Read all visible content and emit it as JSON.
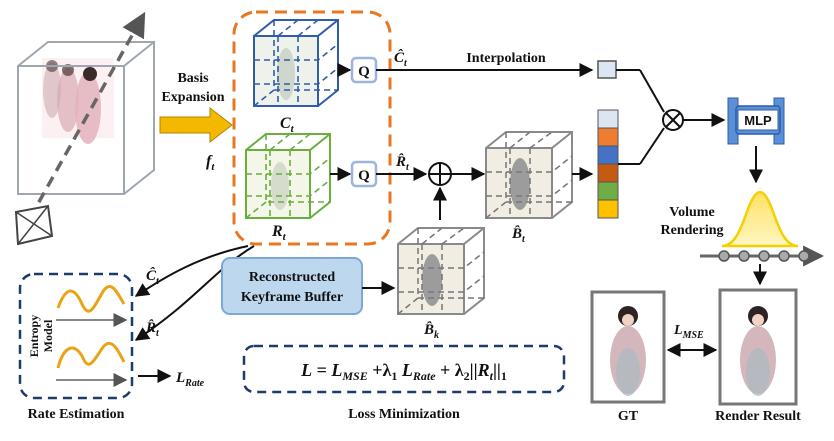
{
  "labels": {
    "basis_expansion_1": "Basis",
    "basis_expansion_2": "Expansion",
    "f_t": "f",
    "f_t_sub": "t",
    "C_t": "C",
    "C_t_sub": "t",
    "R_t": "R",
    "R_t_sub": "t",
    "Q": "Q",
    "C_hat": "Ĉ",
    "C_hat_sub": "t",
    "R_hat": "R̂",
    "R_hat_sub": "t",
    "interpolation": "Interpolation",
    "B_hat_t": "B̂",
    "B_hat_t_sub": "t",
    "B_hat_k": "B̂",
    "B_hat_k_sub": "k",
    "keyframe_buffer_1": "Reconstructed",
    "keyframe_buffer_2": "Keyframe Buffer",
    "mlp": "MLP",
    "volume_rendering_1": "Volume",
    "volume_rendering_2": "Rendering",
    "entropy_model_1": "Entropy",
    "entropy_model_2": "Model",
    "L_rate": "L",
    "L_rate_sub": "Rate",
    "L_mse": "L",
    "L_mse_sub": "MSE",
    "rate_estimation": "Rate Estimation",
    "loss_minimization": "Loss Minimization",
    "gt": "GT",
    "render_result": "Render Result",
    "loss_formula": {
      "L": "L",
      "eq": " = ",
      "Lmse": "L",
      "Lmse_sub": "MSE",
      "plus1": " +λ",
      "l1_sub": "1",
      "Lrate": " L",
      "Lrate_sub": "Rate",
      "plus2": " + λ",
      "l2_sub": "2",
      "norm_open": "||",
      "Rt": "R",
      "Rt_sub": "t",
      "norm_close": "||",
      "norm_sub": "1"
    }
  },
  "colors": {
    "orange_dashed": "#E87722",
    "blue_cube": "#2F5DA8",
    "green_cube": "#6AAE3C",
    "gray_cube": "#8a8a8a",
    "arrow_yellow": "#F5B800",
    "q_box": "#9DB3DA",
    "mlp_fill": "#5B8FD6",
    "buffer_fill": "#BDD7EE",
    "navy_dashed": "#1F3A6E",
    "feature_stack": [
      "#DCE6F2",
      "#ED7D31",
      "#4472C4",
      "#C55A11",
      "#70AD47",
      "#FFC000"
    ]
  }
}
